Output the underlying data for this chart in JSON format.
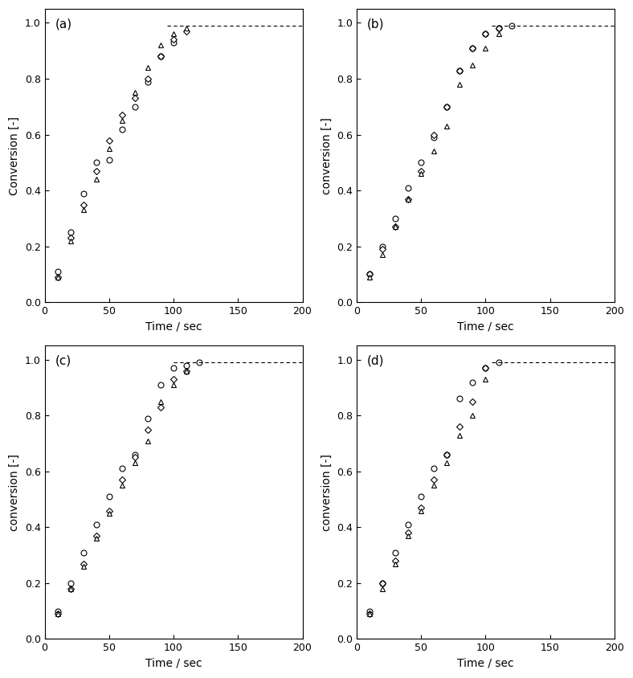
{
  "panels": [
    "(a)",
    "(b)",
    "(c)",
    "(d)"
  ],
  "ylabel_a": "Conversion [-]",
  "ylabel_bcd": "conversion [-]",
  "xlabel": "Time / sec",
  "xlim": [
    0,
    200
  ],
  "ylim": [
    0.0,
    1.05
  ],
  "yticks": [
    0.0,
    0.2,
    0.4,
    0.6,
    0.8,
    1.0
  ],
  "xticks": [
    0,
    50,
    100,
    150,
    200
  ],
  "series_a": {
    "circle": {
      "x": [
        10,
        20,
        30,
        40,
        50,
        60,
        70,
        80,
        90,
        100
      ],
      "y": [
        0.11,
        0.25,
        0.39,
        0.5,
        0.51,
        0.62,
        0.7,
        0.79,
        0.88,
        0.93
      ]
    },
    "diamond": {
      "x": [
        10,
        20,
        30,
        40,
        50,
        60,
        70,
        80,
        90,
        100,
        110
      ],
      "y": [
        0.09,
        0.23,
        0.35,
        0.47,
        0.58,
        0.67,
        0.73,
        0.8,
        0.88,
        0.94,
        0.97
      ]
    },
    "triangle": {
      "x": [
        10,
        20,
        30,
        40,
        50,
        60,
        70,
        80,
        90,
        100,
        110
      ],
      "y": [
        0.09,
        0.22,
        0.33,
        0.44,
        0.55,
        0.65,
        0.75,
        0.84,
        0.92,
        0.96,
        0.98
      ]
    }
  },
  "series_b": {
    "circle": {
      "x": [
        10,
        20,
        30,
        40,
        50,
        60,
        70,
        80,
        90,
        100,
        110,
        120
      ],
      "y": [
        0.1,
        0.2,
        0.3,
        0.41,
        0.5,
        0.59,
        0.7,
        0.83,
        0.91,
        0.96,
        0.98,
        0.99
      ]
    },
    "diamond": {
      "x": [
        10,
        20,
        30,
        40,
        50,
        60,
        70,
        80,
        90,
        100,
        110
      ],
      "y": [
        0.1,
        0.19,
        0.27,
        0.37,
        0.47,
        0.6,
        0.7,
        0.83,
        0.91,
        0.96,
        0.98
      ]
    },
    "triangle": {
      "x": [
        10,
        20,
        30,
        40,
        50,
        60,
        70,
        80,
        90,
        100,
        110
      ],
      "y": [
        0.09,
        0.17,
        0.27,
        0.37,
        0.46,
        0.54,
        0.63,
        0.78,
        0.85,
        0.91,
        0.96
      ]
    }
  },
  "series_c": {
    "circle": {
      "x": [
        10,
        20,
        30,
        40,
        50,
        60,
        70,
        80,
        90,
        100,
        110,
        120
      ],
      "y": [
        0.1,
        0.2,
        0.31,
        0.41,
        0.51,
        0.61,
        0.66,
        0.79,
        0.91,
        0.97,
        0.98,
        0.99
      ]
    },
    "diamond": {
      "x": [
        10,
        20,
        30,
        40,
        50,
        60,
        70,
        80,
        90,
        100,
        110
      ],
      "y": [
        0.09,
        0.18,
        0.27,
        0.37,
        0.46,
        0.57,
        0.65,
        0.75,
        0.83,
        0.93,
        0.96
      ]
    },
    "triangle": {
      "x": [
        10,
        20,
        30,
        40,
        50,
        60,
        70,
        80,
        90,
        100,
        110
      ],
      "y": [
        0.09,
        0.18,
        0.26,
        0.36,
        0.45,
        0.55,
        0.63,
        0.71,
        0.85,
        0.91,
        0.96
      ]
    }
  },
  "series_d": {
    "circle": {
      "x": [
        10,
        20,
        30,
        40,
        50,
        60,
        70,
        80,
        90,
        100,
        110
      ],
      "y": [
        0.1,
        0.2,
        0.31,
        0.41,
        0.51,
        0.61,
        0.66,
        0.86,
        0.92,
        0.97,
        0.99
      ]
    },
    "diamond": {
      "x": [
        10,
        20,
        30,
        40,
        50,
        60,
        70,
        80,
        90,
        100
      ],
      "y": [
        0.09,
        0.2,
        0.28,
        0.38,
        0.47,
        0.57,
        0.66,
        0.76,
        0.85,
        0.97
      ]
    },
    "triangle": {
      "x": [
        10,
        20,
        30,
        40,
        50,
        60,
        70,
        80,
        90,
        100
      ],
      "y": [
        0.09,
        0.18,
        0.27,
        0.37,
        0.46,
        0.55,
        0.63,
        0.73,
        0.8,
        0.93
      ]
    }
  },
  "marker_size": 5,
  "marker_edge_color": "black",
  "marker_face_color": "white",
  "marker_lw": 0.8,
  "dashed_line_color": "black",
  "dashed_line_lw": 0.8
}
